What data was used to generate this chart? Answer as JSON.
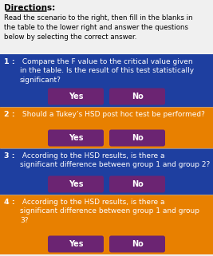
{
  "title": "Directions:",
  "intro_text": "Read the scenario to the right, then fill in the blanks in\nthe table to the lower right and answer the questions\nbelow by selecting the correct answer.",
  "questions": [
    {
      "number": "1 :",
      "text": " Compare the F value to the critical value given\nin the table. Is the result of this test statistically\nsignificant?",
      "bg_color": "#1e3fa0",
      "btn_color": "#6b2472"
    },
    {
      "number": "2 :",
      "text": " Should a Tukey’s HSD post hoc test be performed?",
      "bg_color": "#e88000",
      "btn_color": "#6b2472"
    },
    {
      "number": "3 :",
      "text": " According to the HSD results, is there a\nsignificant difference between group 1 and group 2?",
      "bg_color": "#1e3fa0",
      "btn_color": "#6b2472"
    },
    {
      "number": "4 :",
      "text": " According to the HSD results, is there a\nsignificant difference between group 1 and group\n3?",
      "bg_color": "#e88000",
      "btn_color": "#6b2472"
    }
  ],
  "btn_labels": [
    "Yes",
    "No"
  ],
  "header_bg": "#f0f0f0",
  "header_text_color": "#000000",
  "question_text_color": "#ffffff",
  "btn_text_color": "#ffffff"
}
